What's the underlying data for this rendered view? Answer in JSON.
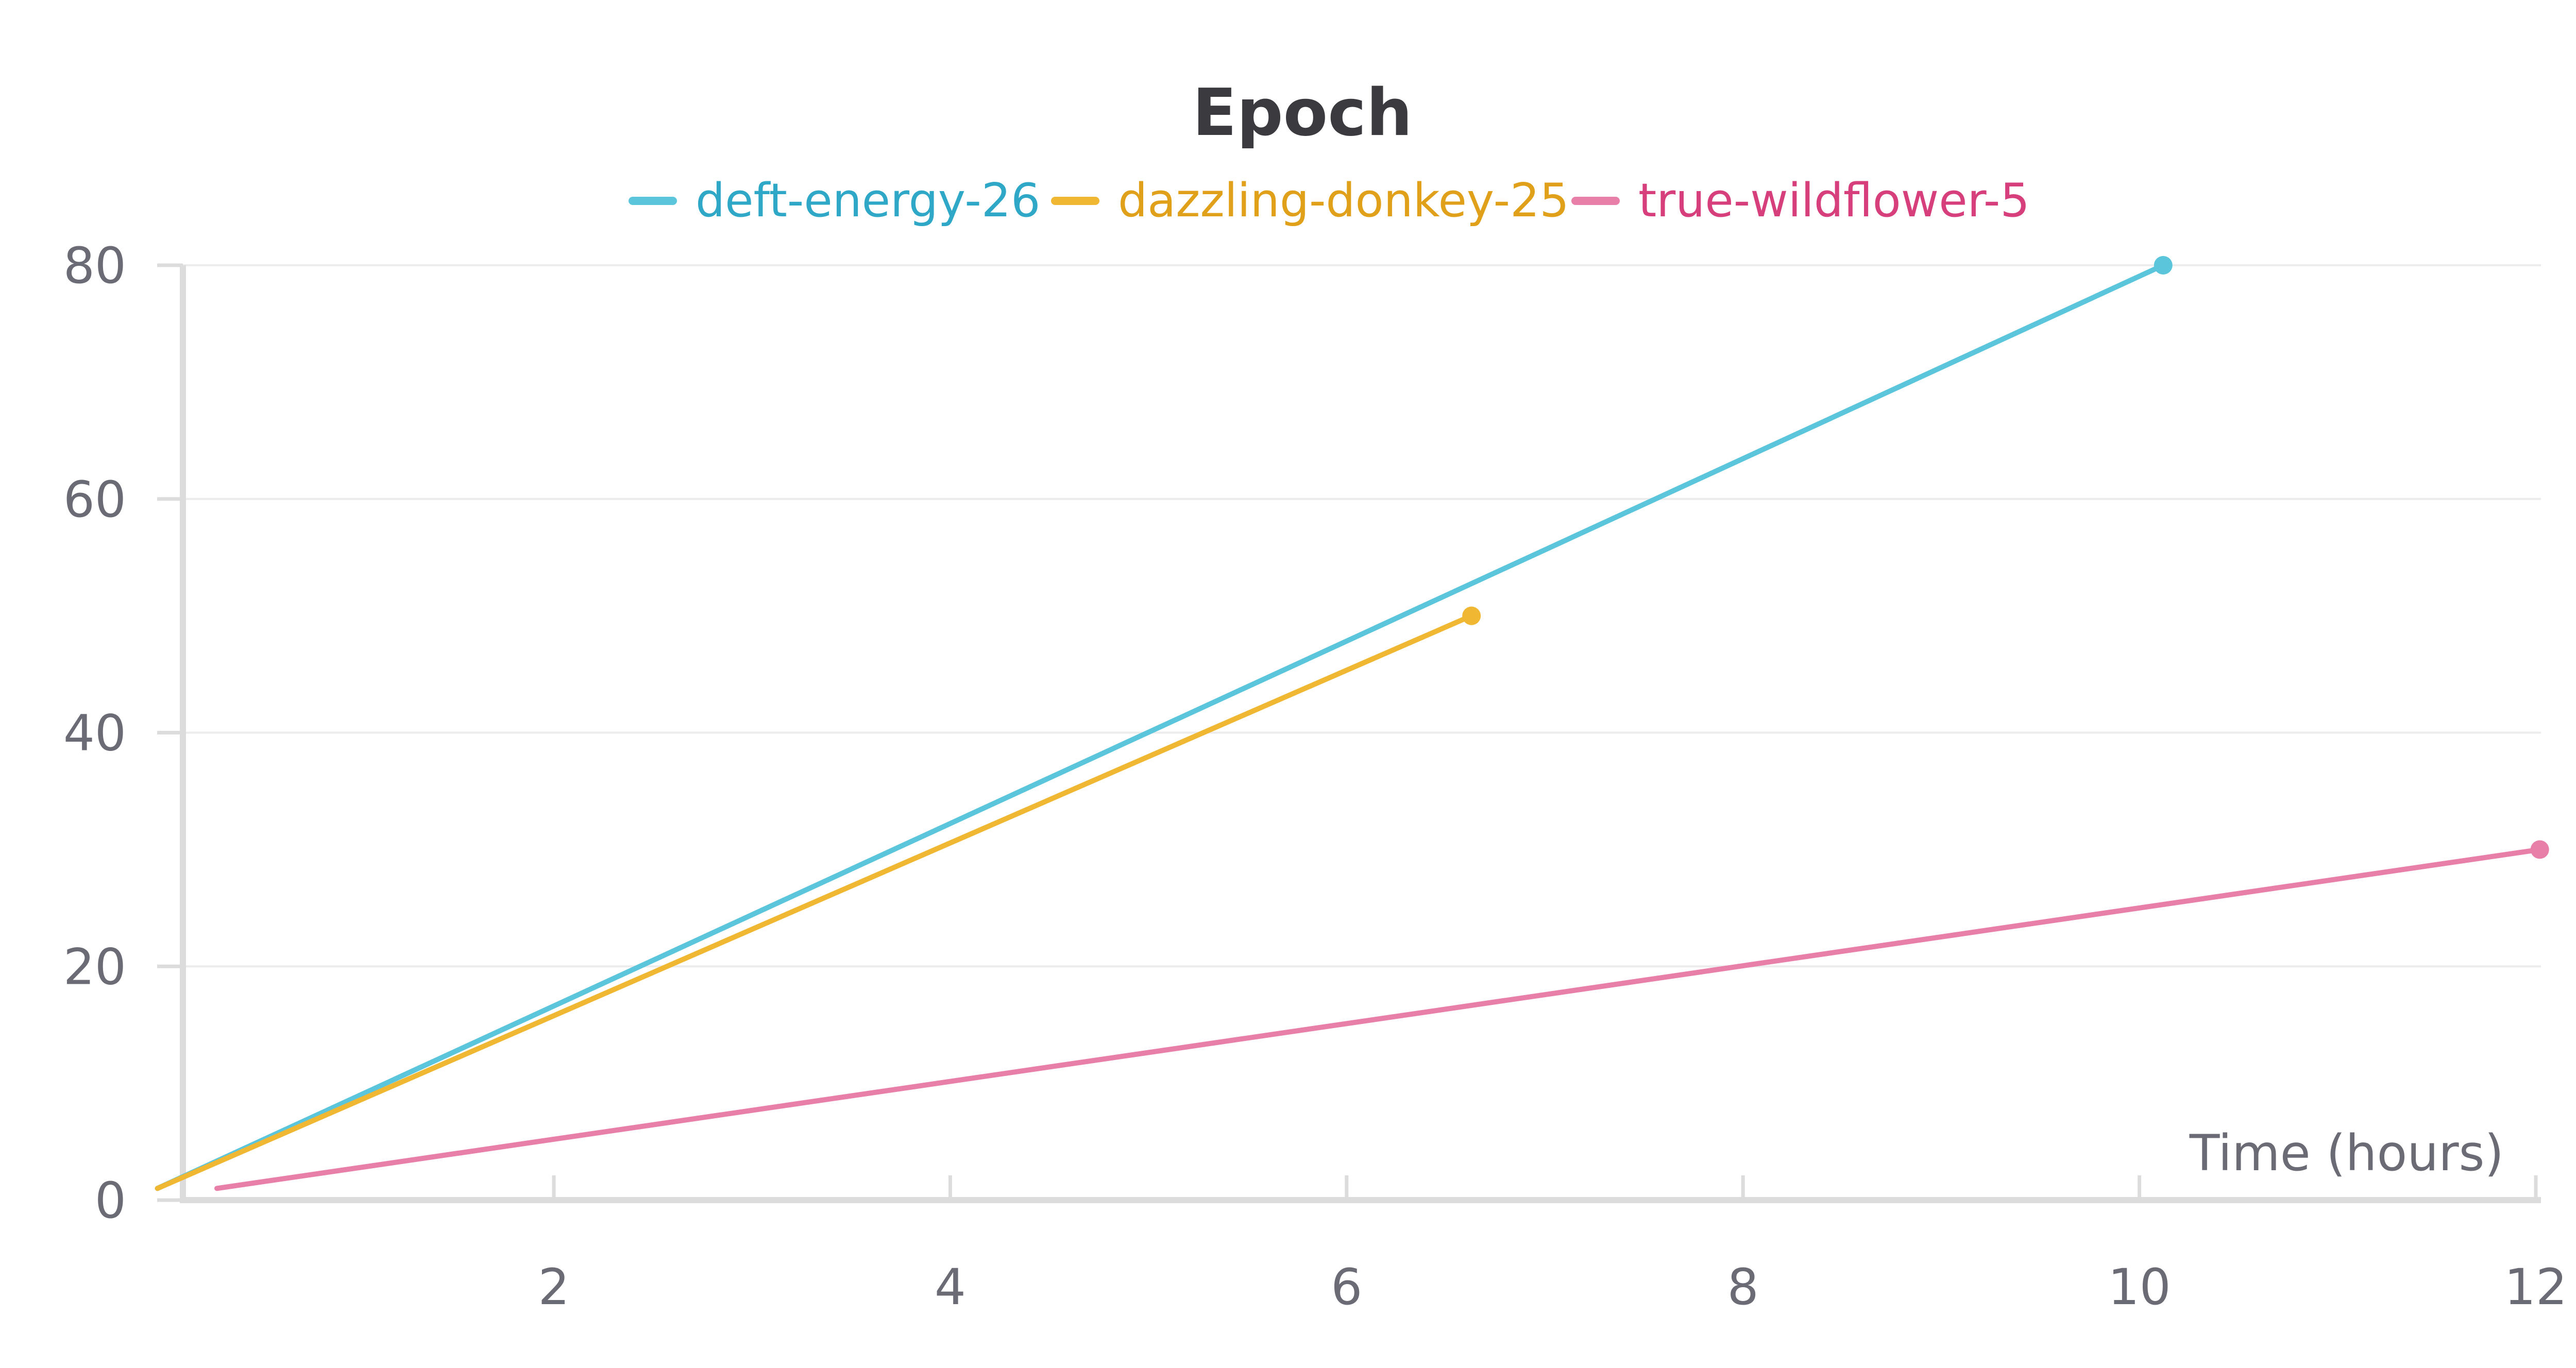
{
  "chart_data": {
    "type": "line",
    "title": "Epoch",
    "xlabel": "Time (hours)",
    "ylabel": "",
    "xlim": [
      0,
      12
    ],
    "ylim": [
      0,
      80
    ],
    "x_ticks": [
      2,
      4,
      6,
      8,
      10,
      12
    ],
    "y_ticks": [
      0,
      20,
      40,
      60,
      80
    ],
    "grid": "horizontal",
    "legend_position": "top-center",
    "series": [
      {
        "name": "deft-energy-26",
        "color": "#5bc5db",
        "text_color": "#2fa8c8",
        "x": [
          0.0,
          10.12
        ],
        "y": [
          1,
          80
        ]
      },
      {
        "name": "dazzling-donkey-25",
        "color": "#f0b733",
        "text_color": "#e0a019",
        "x": [
          0.0,
          6.63
        ],
        "y": [
          1,
          50
        ]
      },
      {
        "name": "true-wildflower-5",
        "color": "#e87fa8",
        "text_color": "#d63f7b",
        "x": [
          0.3,
          12.02
        ],
        "y": [
          1,
          30
        ]
      }
    ]
  }
}
